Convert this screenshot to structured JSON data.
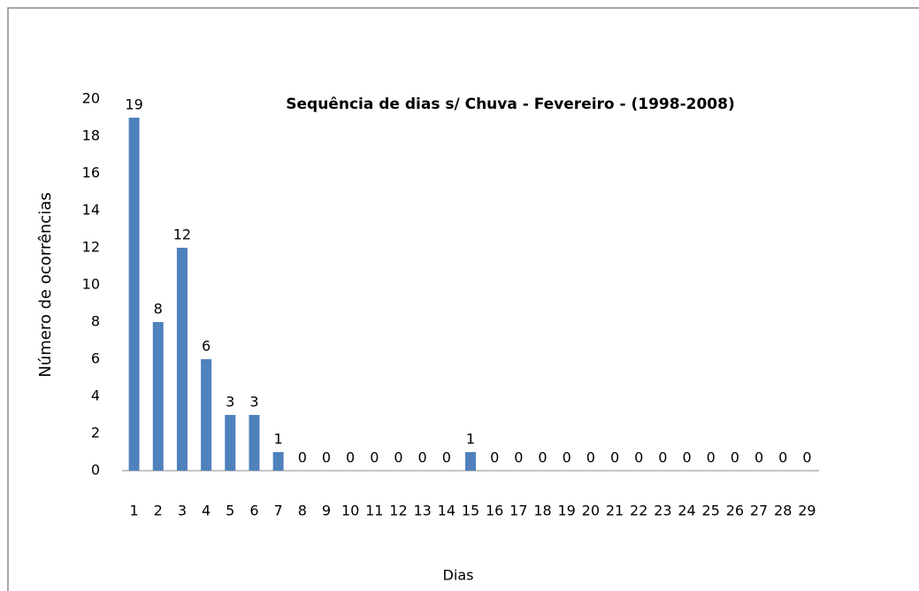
{
  "chart_data": {
    "type": "bar",
    "title": "Sequência de dias s/ Chuva - Fevereiro - (1998-2008)",
    "x_label": "Dias",
    "y_label": "Número de ocorrências",
    "categories": [
      1,
      2,
      3,
      4,
      5,
      6,
      7,
      8,
      9,
      10,
      11,
      12,
      13,
      14,
      15,
      16,
      17,
      18,
      19,
      20,
      21,
      22,
      23,
      24,
      25,
      26,
      27,
      28,
      29
    ],
    "values": [
      19,
      8,
      12,
      6,
      3,
      3,
      1,
      0,
      0,
      0,
      0,
      0,
      0,
      0,
      1,
      0,
      0,
      0,
      0,
      0,
      0,
      0,
      0,
      0,
      0,
      0,
      0,
      0,
      0
    ],
    "color": "#4f81bd",
    "ylim": [
      0,
      20
    ],
    "yticks": [
      0,
      2,
      4,
      6,
      8,
      10,
      12,
      14,
      16,
      18,
      20
    ],
    "grid": false
  }
}
